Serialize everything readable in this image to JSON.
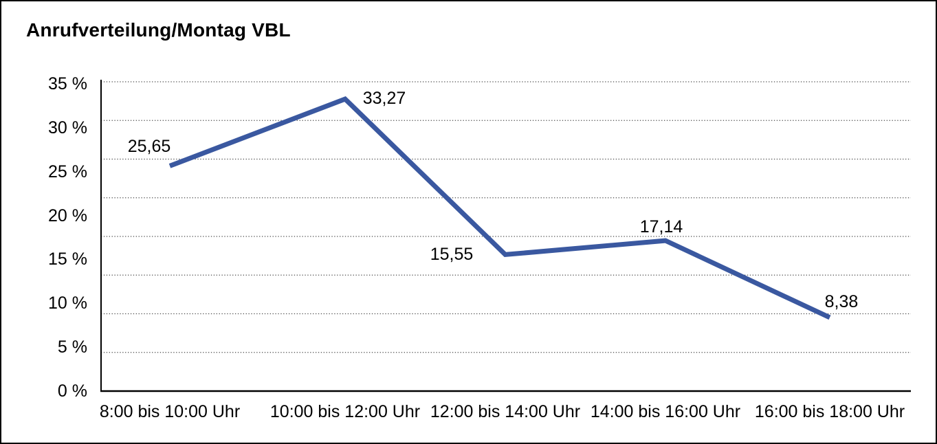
{
  "chart_data": {
    "type": "line",
    "title": "Anrufverteilung/Montag VBL",
    "categories": [
      "8:00 bis 10:00 Uhr",
      "10:00 bis 12:00 Uhr",
      "12:00 bis 14:00 Uhr",
      "14:00 bis 16:00 Uhr",
      "16:00 bis 18:00 Uhr"
    ],
    "values": [
      25.65,
      33.27,
      15.55,
      17.14,
      8.38
    ],
    "value_labels": [
      "25,65",
      "33,27",
      "15,55",
      "17,14",
      "8,38"
    ],
    "yticks": [
      "35 %",
      "30 %",
      "25 %",
      "20 %",
      "15 %",
      "10 %",
      "5 %",
      "0 %"
    ],
    "ylim": [
      0,
      35
    ],
    "y_unit": "%",
    "grid": "horizontal-dotted",
    "legend": "none",
    "colors": {
      "line": "#3A58A0",
      "axis": "#000000",
      "grid_dots": "#4A4A4A",
      "text": "#000000",
      "background": "#FFFFFF"
    }
  }
}
